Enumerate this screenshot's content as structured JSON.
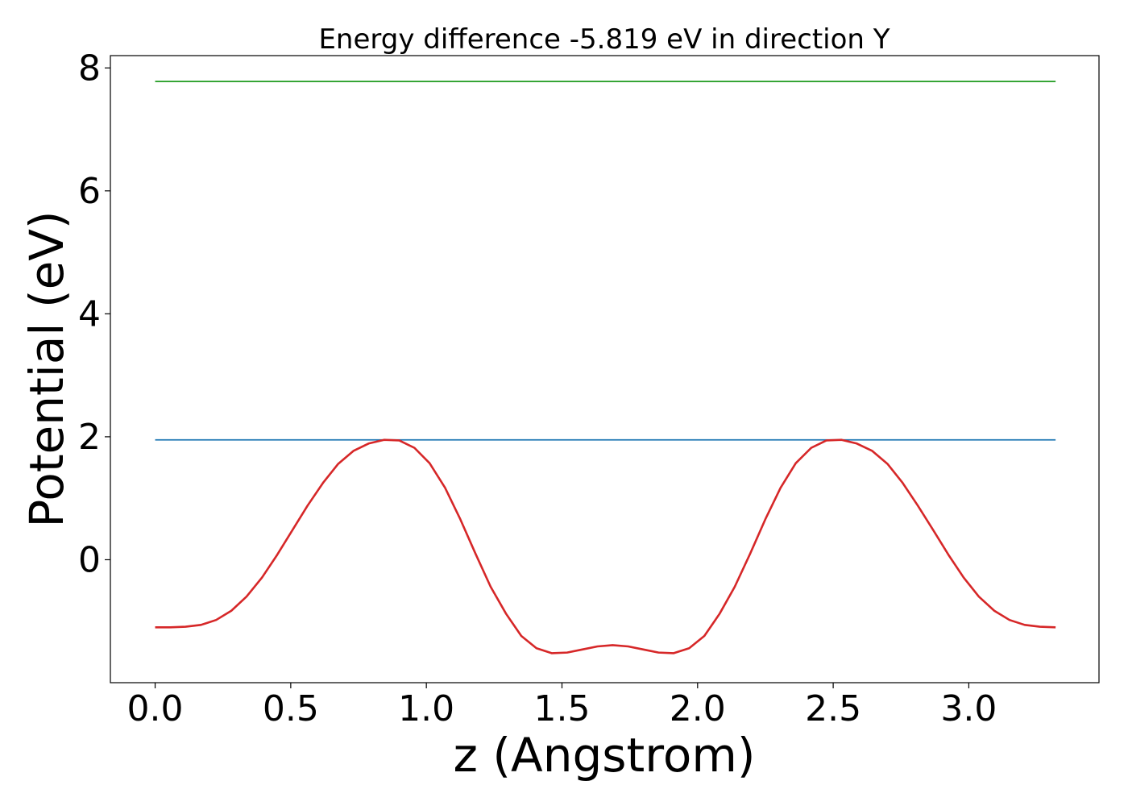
{
  "chart_data": {
    "type": "line",
    "title": "Energy difference -5.819 eV in direction Y",
    "xlabel": "z (Angstrom)",
    "ylabel": "Potential (eV)",
    "xlim": [
      -0.165,
      3.48
    ],
    "ylim": [
      -2.0,
      8.2
    ],
    "xticks": [
      {
        "value": 0.0,
        "label": "0.0"
      },
      {
        "value": 0.5,
        "label": "0.5"
      },
      {
        "value": 1.0,
        "label": "1.0"
      },
      {
        "value": 1.5,
        "label": "1.5"
      },
      {
        "value": 2.0,
        "label": "2.0"
      },
      {
        "value": 2.5,
        "label": "2.5"
      },
      {
        "value": 3.0,
        "label": "3.0"
      }
    ],
    "yticks": [
      {
        "value": 0,
        "label": "0"
      },
      {
        "value": 2,
        "label": "2"
      },
      {
        "value": 4,
        "label": "4"
      },
      {
        "value": 6,
        "label": "6"
      },
      {
        "value": 8,
        "label": "8"
      }
    ],
    "grid": false,
    "series": [
      {
        "color": "#2ca02c",
        "x": [
          0.0,
          3.32
        ],
        "y": [
          7.78,
          7.78
        ]
      },
      {
        "color": "#1f77b4",
        "x": [
          0.0,
          3.32
        ],
        "y": [
          1.95,
          1.95
        ]
      },
      {
        "color": "#d62728",
        "x": [
          0.0,
          0.056,
          0.112,
          0.169,
          0.225,
          0.281,
          0.337,
          0.394,
          0.45,
          0.506,
          0.562,
          0.619,
          0.675,
          0.731,
          0.787,
          0.844,
          0.9,
          0.956,
          1.012,
          1.069,
          1.125,
          1.181,
          1.237,
          1.294,
          1.35,
          1.406,
          1.462,
          1.519,
          1.575,
          1.631,
          1.687,
          1.744,
          1.8,
          1.856,
          1.912,
          1.969,
          2.025,
          2.081,
          2.137,
          2.194,
          2.25,
          2.306,
          2.362,
          2.419,
          2.475,
          2.531,
          2.587,
          2.644,
          2.7,
          2.756,
          2.812,
          2.869,
          2.925,
          2.981,
          3.037,
          3.094,
          3.15,
          3.206,
          3.262,
          3.32
        ],
        "y": [
          -1.1,
          -1.1,
          -1.09,
          -1.06,
          -0.98,
          -0.83,
          -0.6,
          -0.29,
          0.08,
          0.48,
          0.88,
          1.25,
          1.56,
          1.77,
          1.89,
          1.95,
          1.94,
          1.82,
          1.57,
          1.17,
          0.66,
          0.1,
          -0.44,
          -0.88,
          -1.24,
          -1.44,
          -1.52,
          -1.51,
          -1.46,
          -1.41,
          -1.39,
          -1.41,
          -1.46,
          -1.51,
          -1.52,
          -1.44,
          -1.24,
          -0.88,
          -0.44,
          0.1,
          0.66,
          1.17,
          1.57,
          1.82,
          1.94,
          1.95,
          1.89,
          1.77,
          1.56,
          1.25,
          0.88,
          0.48,
          0.08,
          -0.29,
          -0.6,
          -0.83,
          -0.98,
          -1.06,
          -1.09,
          -1.1
        ]
      }
    ]
  }
}
